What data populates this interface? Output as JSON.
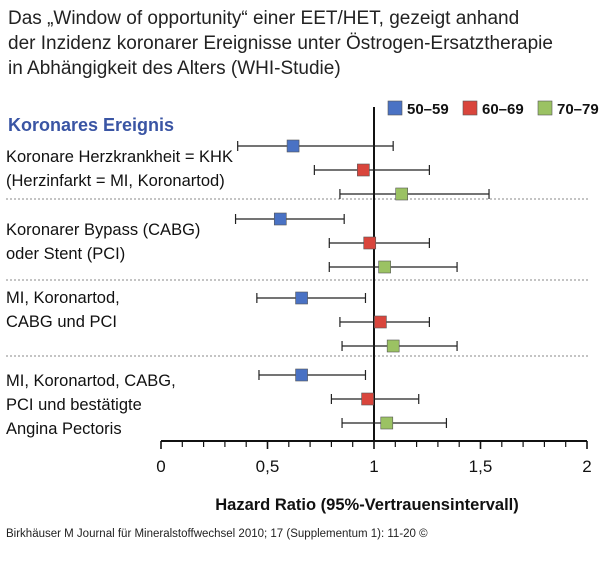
{
  "title_lines": [
    "Das „Window of opportunity“ einer EET/HET, gezeigt anhand",
    "der Inzidenz koronarer Ereignisse unter Östrogen-Ersatztherapie",
    "in Abhängigkeit des Alters (WHI-Studie)"
  ],
  "chart_data": {
    "type": "forest",
    "column_header": "Koronares Ereignis",
    "xlabel": "Hazard Ratio (95%-Vertrauensintervall)",
    "xlim": [
      0,
      2
    ],
    "xticks": [
      "0",
      "0,5",
      "1",
      "1,5",
      "2"
    ],
    "reference_line": 1,
    "legend_position": "top-right",
    "series": [
      {
        "name": "50–59",
        "color": "#4a72c4"
      },
      {
        "name": "60–69",
        "color": "#d9453c"
      },
      {
        "name": "70–79",
        "color": "#9bc263"
      }
    ],
    "groups": [
      {
        "label_lines": [
          "Koronare Herzkrankheit = KHK",
          "(Herzinfarkt = MI, Koronartod)"
        ],
        "estimates": [
          {
            "series": "50–59",
            "hr": 0.62,
            "lower": 0.36,
            "upper": 1.09
          },
          {
            "series": "60–69",
            "hr": 0.95,
            "lower": 0.72,
            "upper": 1.26
          },
          {
            "series": "70–79",
            "hr": 1.13,
            "lower": 0.84,
            "upper": 1.54
          }
        ]
      },
      {
        "label_lines": [
          "Koronarer Bypass (CABG)",
          "oder Stent (PCI)"
        ],
        "estimates": [
          {
            "series": "50–59",
            "hr": 0.56,
            "lower": 0.35,
            "upper": 0.86
          },
          {
            "series": "60–69",
            "hr": 0.98,
            "lower": 0.79,
            "upper": 1.26
          },
          {
            "series": "70–79",
            "hr": 1.05,
            "lower": 0.79,
            "upper": 1.39
          }
        ]
      },
      {
        "label_lines": [
          "MI, Koronartod,",
          "CABG und PCI"
        ],
        "estimates": [
          {
            "series": "50–59",
            "hr": 0.66,
            "lower": 0.45,
            "upper": 0.96
          },
          {
            "series": "60–69",
            "hr": 1.03,
            "lower": 0.84,
            "upper": 1.26
          },
          {
            "series": "70–79",
            "hr": 1.09,
            "lower": 0.85,
            "upper": 1.39
          }
        ]
      },
      {
        "label_lines": [
          "MI, Koronartod, CABG,",
          "PCI und bestätigte",
          "Angina Pectoris"
        ],
        "estimates": [
          {
            "series": "50–59",
            "hr": 0.66,
            "lower": 0.46,
            "upper": 0.96
          },
          {
            "series": "60–69",
            "hr": 0.97,
            "lower": 0.8,
            "upper": 1.21
          },
          {
            "series": "70–79",
            "hr": 1.06,
            "lower": 0.85,
            "upper": 1.34
          }
        ]
      }
    ]
  },
  "footer": "Birkhäuser M Journal für Mineralstoffwechsel 2010; 17 (Supplementum 1): 11-20 ©"
}
